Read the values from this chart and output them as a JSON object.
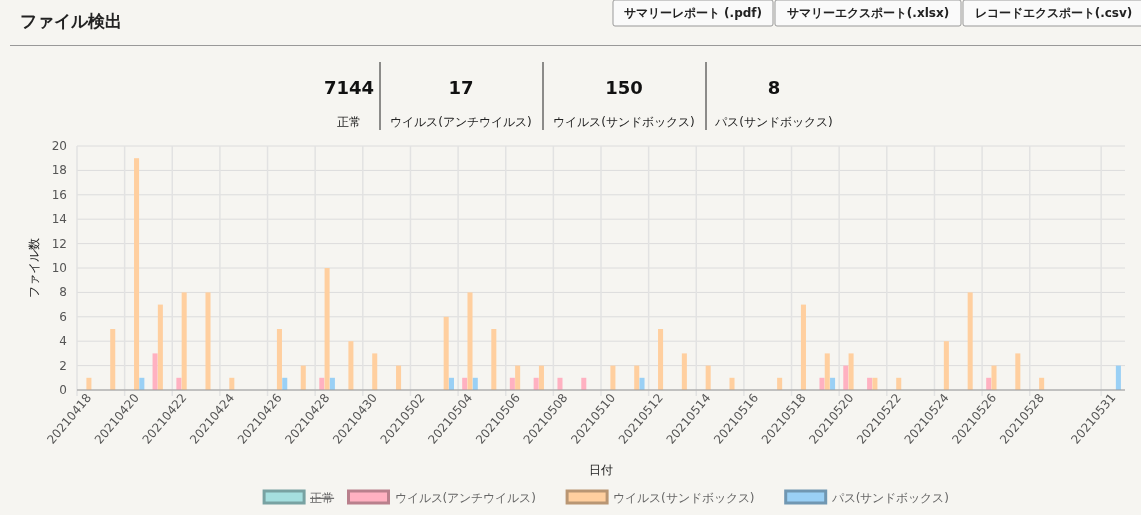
{
  "chart_data": {
    "type": "bar",
    "title": "ファイル検出",
    "xlabel": "日付",
    "ylabel": "ファイル数",
    "annotations": [
      "サマリーレポート (.pdf)",
      "サマリーエクスポート(.xlsx)",
      "レコードエクスポート(.csv)",
      "7144",
      "正常",
      "17",
      "ウイルス(アンチウイルス)",
      "150",
      "ウイルス(サンドボックス)",
      "8",
      "パス(サンドボックス)"
    ],
    "categories": [
      "20210418",
      null,
      "20210420",
      null,
      "20210422",
      null,
      "20210424",
      null,
      "20210426",
      null,
      "20210428",
      null,
      "20210430",
      null,
      "20210502",
      null,
      "20210504",
      null,
      "20210506",
      null,
      "20210508",
      null,
      "20210510",
      null,
      "20210512",
      null,
      "20210514",
      null,
      "20210516",
      null,
      "20210518",
      null,
      "20210520",
      null,
      "20210522",
      null,
      "20210524",
      null,
      "20210526",
      null,
      "20210528",
      null,
      null,
      "20210531"
    ],
    "series": [
      {
        "name": "正常",
        "color": "#a5dfdf",
        "values": [
          null,
          null,
          null,
          null,
          null,
          null,
          null,
          null,
          null,
          null,
          null,
          null,
          null,
          null,
          null,
          null,
          null,
          null,
          null,
          null,
          null,
          null,
          null,
          null,
          null,
          null,
          null,
          null,
          null,
          null,
          null,
          null,
          null,
          null,
          null,
          null,
          null,
          null,
          null,
          null,
          null,
          null,
          null,
          null
        ]
      },
      {
        "name": "ウイルス(アンチウイルス)",
        "color": "#ffb1c1",
        "values": [
          null,
          null,
          null,
          3,
          1,
          null,
          null,
          null,
          null,
          null,
          1,
          null,
          null,
          null,
          null,
          null,
          1,
          null,
          1,
          1,
          1,
          1,
          null,
          null,
          null,
          null,
          null,
          null,
          null,
          null,
          null,
          1,
          2,
          1,
          null,
          null,
          null,
          null,
          1,
          null,
          null,
          null,
          null,
          null
        ]
      },
      {
        "name": "ウイルス(サンドボックス)",
        "color": "#ffcf9f",
        "values": [
          1,
          5,
          19,
          7,
          8,
          8,
          1,
          null,
          5,
          2,
          10,
          4,
          3,
          2,
          null,
          6,
          8,
          5,
          2,
          2,
          null,
          null,
          2,
          2,
          5,
          3,
          2,
          1,
          null,
          1,
          7,
          3,
          3,
          1,
          1,
          null,
          4,
          8,
          2,
          3,
          1,
          null,
          null,
          null
        ]
      },
      {
        "name": "パス(サンドボックス)",
        "color": "#9ad0f5",
        "values": [
          null,
          null,
          1,
          null,
          null,
          null,
          null,
          null,
          1,
          null,
          1,
          null,
          null,
          null,
          null,
          1,
          1,
          null,
          null,
          null,
          null,
          null,
          null,
          1,
          null,
          null,
          null,
          null,
          null,
          null,
          null,
          1,
          null,
          null,
          null,
          null,
          null,
          null,
          null,
          null,
          null,
          null,
          null,
          2
        ]
      }
    ],
    "ylim": [
      0,
      20
    ],
    "yticks": [
      0,
      2,
      4,
      6,
      8,
      10,
      12,
      14,
      16,
      18,
      20
    ],
    "grid": true,
    "legend": "bottom"
  }
}
